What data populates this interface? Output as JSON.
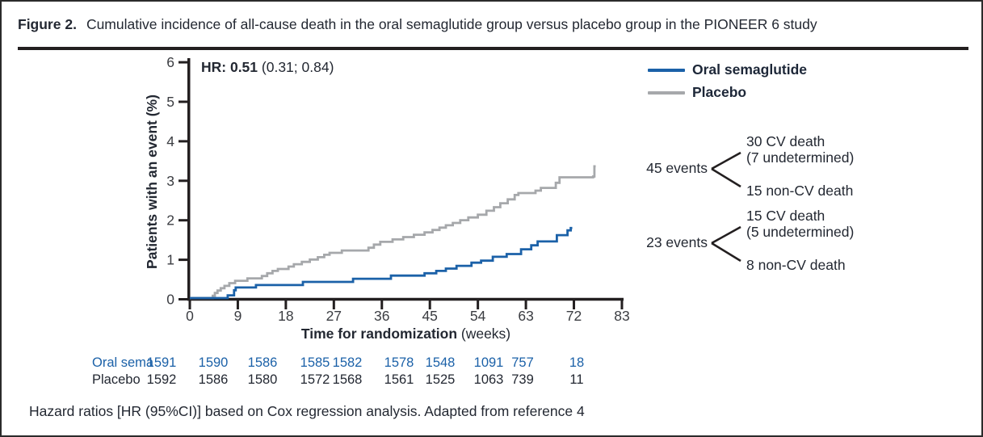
{
  "header": {
    "figure_label": "Figure 2.",
    "title": "Cumulative incidence of all-cause death in the oral semaglutide group versus placebo group in the PIONEER 6 study"
  },
  "chart_data": {
    "type": "line",
    "subtype": "kaplan-meier-step",
    "title": "",
    "hr_annotation": {
      "bold": "HR: 0.51",
      "rest": "(0.31; 0.84)"
    },
    "xlabel_bold": "Time for randomization",
    "xlabel_unit": " (weeks)",
    "ylabel": "Patients with an event (%)",
    "x_ticks": [
      0,
      9,
      18,
      27,
      36,
      45,
      54,
      63,
      72,
      83
    ],
    "y_ticks": [
      0,
      1,
      2,
      3,
      4,
      5,
      6
    ],
    "ylim": [
      0,
      6
    ],
    "grid": false,
    "legend_position": "top-right",
    "axis_color": "#231f20",
    "tick_label_color": "#3b3d42",
    "series": [
      {
        "name": "Oral semaglutide",
        "color": "#1b61a8",
        "points": [
          [
            0,
            0
          ],
          [
            7.1,
            0.07
          ],
          [
            8.3,
            0.2
          ],
          [
            8.6,
            0.27
          ],
          [
            12.4,
            0.33
          ],
          [
            21.2,
            0.41
          ],
          [
            30.6,
            0.49
          ],
          [
            37.7,
            0.57
          ],
          [
            44,
            0.63
          ],
          [
            46.2,
            0.69
          ],
          [
            48,
            0.75
          ],
          [
            50,
            0.82
          ],
          [
            52.8,
            0.9
          ],
          [
            54.6,
            0.95
          ],
          [
            56.8,
            1.05
          ],
          [
            59.4,
            1.12
          ],
          [
            62.1,
            1.24
          ],
          [
            64,
            1.34
          ],
          [
            65.2,
            1.44
          ],
          [
            68.8,
            1.6
          ],
          [
            70.8,
            1.72
          ],
          [
            71.4,
            1.78
          ],
          [
            71.7,
            1.78
          ]
        ]
      },
      {
        "name": "Placebo",
        "color": "#a6a8ab",
        "points": [
          [
            0,
            0
          ],
          [
            4.3,
            0.06
          ],
          [
            4.7,
            0.13
          ],
          [
            5.2,
            0.19
          ],
          [
            5.8,
            0.25
          ],
          [
            6.5,
            0.31
          ],
          [
            7.4,
            0.38
          ],
          [
            8.5,
            0.44
          ],
          [
            10.8,
            0.5
          ],
          [
            13.5,
            0.56
          ],
          [
            14.5,
            0.63
          ],
          [
            15.5,
            0.69
          ],
          [
            16.5,
            0.74
          ],
          [
            18.5,
            0.8
          ],
          [
            19.5,
            0.86
          ],
          [
            21,
            0.92
          ],
          [
            22.5,
            0.98
          ],
          [
            24,
            1.04
          ],
          [
            25.2,
            1.1
          ],
          [
            26.2,
            1.15
          ],
          [
            28.5,
            1.21
          ],
          [
            33.5,
            1.28
          ],
          [
            34.5,
            1.36
          ],
          [
            35.7,
            1.43
          ],
          [
            38,
            1.49
          ],
          [
            40,
            1.55
          ],
          [
            42,
            1.61
          ],
          [
            44,
            1.67
          ],
          [
            45.5,
            1.73
          ],
          [
            46.8,
            1.79
          ],
          [
            48,
            1.85
          ],
          [
            49.3,
            1.91
          ],
          [
            50.7,
            1.98
          ],
          [
            52.2,
            2.05
          ],
          [
            54,
            2.12
          ],
          [
            55.6,
            2.22
          ],
          [
            57,
            2.31
          ],
          [
            58.2,
            2.41
          ],
          [
            59.6,
            2.51
          ],
          [
            60.9,
            2.62
          ],
          [
            61.6,
            2.67
          ],
          [
            64.8,
            2.73
          ],
          [
            65.8,
            2.8
          ],
          [
            68.6,
            2.93
          ],
          [
            69.3,
            3.07
          ],
          [
            76.4,
            3.09
          ],
          [
            76.7,
            3.35
          ],
          [
            77,
            3.35
          ]
        ]
      }
    ]
  },
  "annotations": [
    {
      "events": "45 events",
      "branch_top_line1": "30 CV death",
      "branch_top_line2": "(7 undetermined)",
      "branch_bottom": "15 non-CV death"
    },
    {
      "events": "23 events",
      "branch_top_line1": "15 CV death",
      "branch_top_line2": "(5 undetermined)",
      "branch_bottom": "8 non-CV death"
    }
  ],
  "risk_table": {
    "rows": [
      {
        "label": "Oral sema",
        "color": "#1b61a8",
        "values": [
          "1591",
          "1590",
          "1586",
          "1585",
          "1582",
          "1578",
          "1548",
          "1091",
          "757",
          "18"
        ]
      },
      {
        "label": "Placebo",
        "color": "#232832",
        "values": [
          "1592",
          "1586",
          "1580",
          "1572",
          "1568",
          "1561",
          "1525",
          "1063",
          "739",
          "11"
        ]
      }
    ]
  },
  "caption": "Hazard ratios [HR (95%CI)] based on Cox regression analysis. Adapted from reference 4"
}
